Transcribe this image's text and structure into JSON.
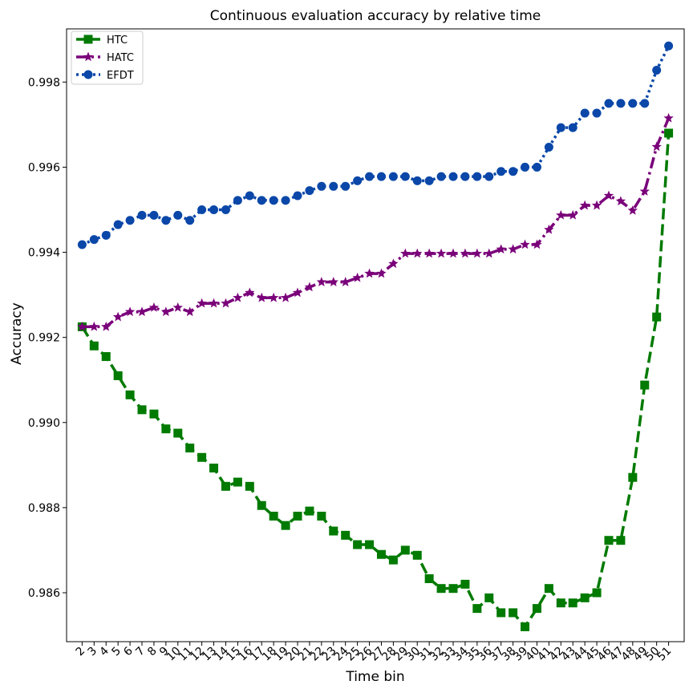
{
  "chart_data": {
    "type": "line",
    "title": "Continuous evaluation accuracy by relative time",
    "xlabel": "Time bin",
    "ylabel": "Accuracy",
    "x": [
      2,
      3,
      4,
      5,
      6,
      7,
      8,
      9,
      10,
      11,
      12,
      13,
      14,
      15,
      16,
      17,
      18,
      19,
      20,
      21,
      22,
      23,
      24,
      25,
      26,
      27,
      28,
      29,
      30,
      31,
      32,
      33,
      34,
      35,
      36,
      37,
      38,
      39,
      40,
      41,
      42,
      43,
      44,
      45,
      46,
      47,
      48,
      49,
      50,
      51
    ],
    "xlim": [
      0.7,
      52.3
    ],
    "ylim": [
      0.98485,
      0.99925
    ],
    "yticks": [
      0.986,
      0.988,
      0.99,
      0.992,
      0.994,
      0.996,
      0.998
    ],
    "ytick_labels": [
      "0.986",
      "0.988",
      "0.990",
      "0.992",
      "0.994",
      "0.996",
      "0.998"
    ],
    "xtick_labels": [
      "2",
      "3",
      "4",
      "5",
      "6",
      "7",
      "8",
      "9",
      "10",
      "11",
      "12",
      "13",
      "14",
      "15",
      "16",
      "17",
      "18",
      "19",
      "20",
      "21",
      "22",
      "23",
      "24",
      "25",
      "26",
      "27",
      "28",
      "29",
      "30",
      "31",
      "32",
      "33",
      "34",
      "35",
      "36",
      "37",
      "38",
      "39",
      "40",
      "41",
      "42",
      "43",
      "44",
      "45",
      "46",
      "47",
      "48",
      "49",
      "50",
      "51"
    ],
    "legend_position": "top-left",
    "grid": false,
    "series": [
      {
        "name": "HTC",
        "color": "#007a00",
        "marker": "square",
        "linestyle": "dashed",
        "values": [
          0.99225,
          0.9918,
          0.99155,
          0.9911,
          0.99065,
          0.9903,
          0.9902,
          0.98985,
          0.98975,
          0.9894,
          0.98918,
          0.98893,
          0.9885,
          0.9886,
          0.9885,
          0.98805,
          0.9878,
          0.98758,
          0.9878,
          0.98792,
          0.9878,
          0.98745,
          0.98735,
          0.98713,
          0.98713,
          0.9869,
          0.98677,
          0.987,
          0.98688,
          0.98633,
          0.9861,
          0.9861,
          0.9862,
          0.98563,
          0.98588,
          0.98553,
          0.98553,
          0.9852,
          0.98563,
          0.9861,
          0.98576,
          0.98576,
          0.98588,
          0.986,
          0.98723,
          0.98723,
          0.98871,
          0.99088,
          0.99248,
          0.9968
        ]
      },
      {
        "name": "HATC",
        "color": "#7a007a",
        "marker": "star",
        "linestyle": "dashdot",
        "values": [
          0.99225,
          0.99225,
          0.99225,
          0.99248,
          0.9926,
          0.9926,
          0.9927,
          0.9926,
          0.9927,
          0.9926,
          0.9928,
          0.9928,
          0.9928,
          0.99293,
          0.99305,
          0.99293,
          0.99293,
          0.99293,
          0.99305,
          0.99318,
          0.9933,
          0.9933,
          0.9933,
          0.9934,
          0.9935,
          0.9935,
          0.99373,
          0.99397,
          0.99397,
          0.99397,
          0.99397,
          0.99397,
          0.99397,
          0.99397,
          0.99397,
          0.99407,
          0.99407,
          0.99418,
          0.99418,
          0.99453,
          0.99487,
          0.99487,
          0.9951,
          0.9951,
          0.99533,
          0.9952,
          0.99498,
          0.99543,
          0.99648,
          0.99715
        ]
      },
      {
        "name": "EFDT",
        "color": "#0a47a8",
        "marker": "circle",
        "linestyle": "dotted",
        "values": [
          0.99418,
          0.9943,
          0.9944,
          0.99465,
          0.99475,
          0.99487,
          0.99487,
          0.99475,
          0.99487,
          0.99475,
          0.995,
          0.995,
          0.995,
          0.99522,
          0.99533,
          0.99522,
          0.99522,
          0.99522,
          0.99533,
          0.99545,
          0.99555,
          0.99555,
          0.99555,
          0.99568,
          0.99578,
          0.99578,
          0.99578,
          0.99578,
          0.99568,
          0.99568,
          0.99578,
          0.99578,
          0.99578,
          0.99578,
          0.99578,
          0.9959,
          0.9959,
          0.996,
          0.996,
          0.99647,
          0.99693,
          0.99693,
          0.99727,
          0.99727,
          0.9975,
          0.9975,
          0.9975,
          0.9975,
          0.99828,
          0.99885
        ]
      }
    ]
  }
}
